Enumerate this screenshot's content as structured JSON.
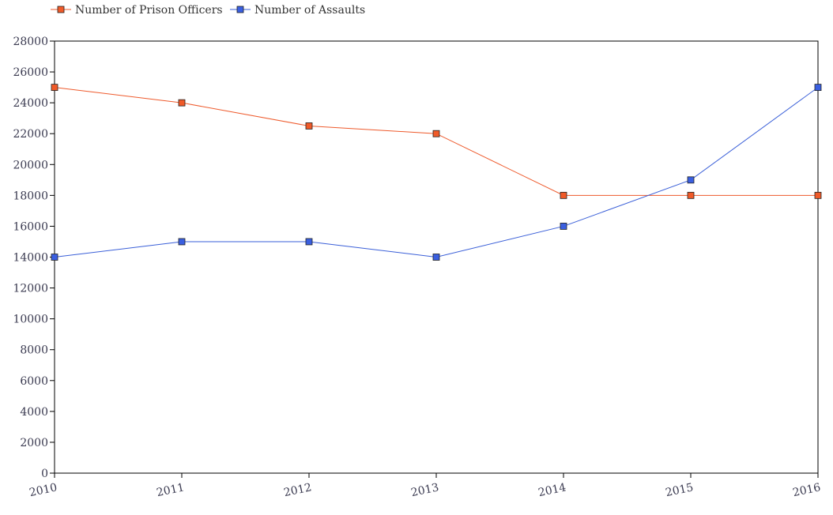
{
  "chart_data": {
    "type": "line",
    "categories": [
      "2010",
      "2011",
      "2012",
      "2013",
      "2014",
      "2015",
      "2016"
    ],
    "series": [
      {
        "name": "Number of Prison Officers",
        "color": "#ee5a2c",
        "marker_color": "#f05a28",
        "values": [
          25000,
          24000,
          22500,
          22000,
          18000,
          18000,
          18000
        ]
      },
      {
        "name": "Number of Assaults",
        "color": "#3a5fd8",
        "marker_color": "#3a5fe0",
        "values": [
          14000,
          15000,
          15000,
          14000,
          16000,
          19000,
          25000
        ]
      }
    ],
    "ylim": [
      0,
      28000
    ],
    "yticks": [
      "0",
      "2000",
      "4000",
      "6000",
      "8000",
      "10000",
      "12000",
      "14000",
      "16000",
      "18000",
      "20000",
      "22000",
      "24000",
      "26000",
      "28000"
    ],
    "title": "",
    "xlabel": "",
    "ylabel": "",
    "grid": false,
    "legend_position": "top-left"
  }
}
